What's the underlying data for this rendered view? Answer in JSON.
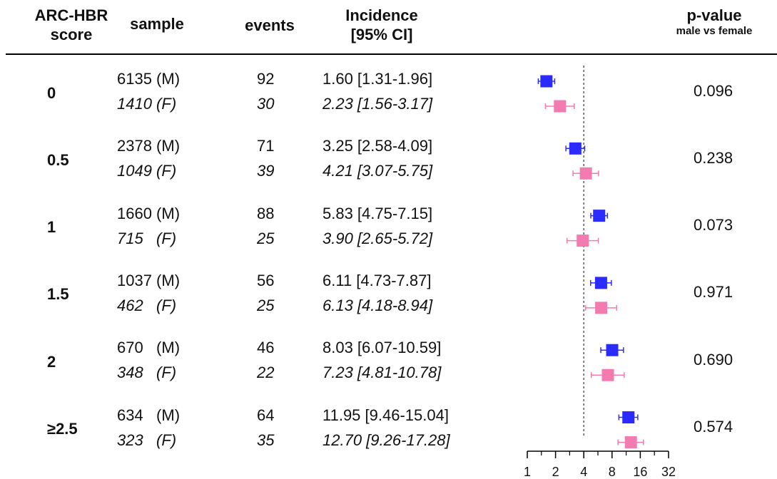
{
  "header": {
    "score": "ARC-HBR\nscore",
    "score_line1": "ARC-HBR",
    "score_line2": "score",
    "sample": "sample",
    "events": "events",
    "incidence_line1": "Incidence",
    "incidence_line2": "[95% CI]",
    "pvalue": "p-value",
    "pvalue_sub": "male vs female"
  },
  "rows": [
    {
      "score": "0",
      "p": "0.096",
      "m": {
        "sample": "6135 (M)",
        "events": "92",
        "ci": "1.60 [1.31-1.96]"
      },
      "f": {
        "sample": "1410 (F)",
        "events": "30",
        "ci": "2.23 [1.56-3.17]"
      }
    },
    {
      "score": "0.5",
      "p": "0.238",
      "m": {
        "sample": "2378 (M)",
        "events": "71",
        "ci": "3.25 [2.58-4.09]"
      },
      "f": {
        "sample": "1049 (F)",
        "events": "39",
        "ci": "4.21 [3.07-5.75]"
      }
    },
    {
      "score": "1",
      "p": "0.073",
      "m": {
        "sample": "1660 (M)",
        "events": "88",
        "ci": "5.83 [4.75-7.15]"
      },
      "f": {
        "sample": "715   (F)",
        "events": "25",
        "ci": "3.90 [2.65-5.72]"
      }
    },
    {
      "score": "1.5",
      "p": "0.971",
      "m": {
        "sample": "1037 (M)",
        "events": "56",
        "ci": "6.11 [4.73-7.87]"
      },
      "f": {
        "sample": "462   (F)",
        "events": "25",
        "ci": "6.13 [4.18-8.94]"
      }
    },
    {
      "score": "2",
      "p": "0.690",
      "m": {
        "sample": "670   (M)",
        "events": "46",
        "ci": "8.03 [6.07-10.59]"
      },
      "f": {
        "sample": "348   (F)",
        "events": "22",
        "ci": "7.23 [4.81-10.78]"
      }
    },
    {
      "score": "≥2.5",
      "p": "0.574",
      "m": {
        "sample": "634   (M)",
        "events": "64",
        "ci": "11.95 [9.46-15.04]"
      },
      "f": {
        "sample": "323   (F)",
        "events": "35",
        "ci": "12.70 [9.26-17.28]"
      }
    }
  ],
  "chart_data": {
    "type": "scatter",
    "subtype": "forest-plot",
    "x_scale": "log2",
    "xlim": [
      1,
      32
    ],
    "x_ticks": [
      1,
      2,
      4,
      8,
      16,
      32
    ],
    "reference_line": 4,
    "series": [
      {
        "color": "#2b2bff",
        "values": [
          {
            "est": 1.6,
            "lo": 1.31,
            "hi": 1.96
          },
          {
            "est": 3.25,
            "lo": 2.58,
            "hi": 4.09
          },
          {
            "est": 5.83,
            "lo": 4.75,
            "hi": 7.15
          },
          {
            "est": 6.11,
            "lo": 4.73,
            "hi": 7.87
          },
          {
            "est": 8.03,
            "lo": 6.07,
            "hi": 10.59
          },
          {
            "est": 11.95,
            "lo": 9.46,
            "hi": 15.04
          }
        ]
      },
      {
        "color": "#f27bb0",
        "values": [
          {
            "est": 2.23,
            "lo": 1.56,
            "hi": 3.17
          },
          {
            "est": 4.21,
            "lo": 3.07,
            "hi": 5.75
          },
          {
            "est": 3.9,
            "lo": 2.65,
            "hi": 5.72
          },
          {
            "est": 6.13,
            "lo": 4.18,
            "hi": 8.94
          },
          {
            "est": 7.23,
            "lo": 4.81,
            "hi": 10.78
          },
          {
            "est": 12.7,
            "lo": 9.26,
            "hi": 17.28
          }
        ]
      }
    ]
  }
}
